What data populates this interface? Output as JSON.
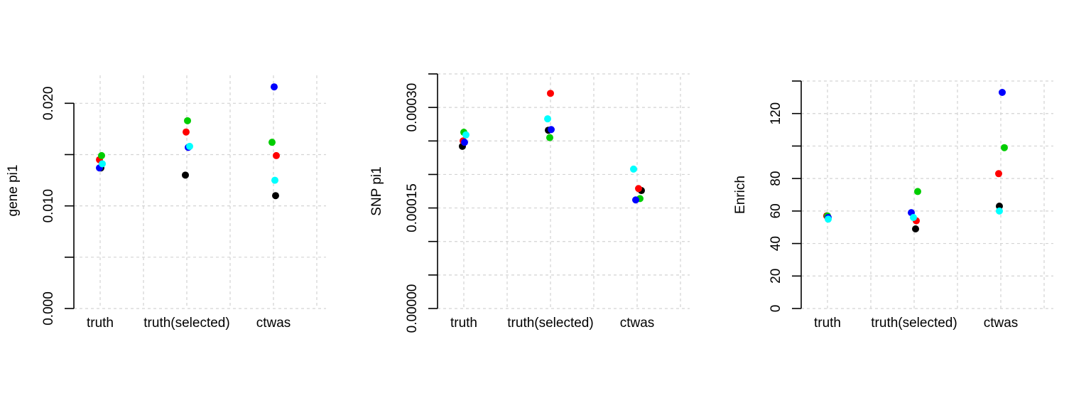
{
  "colors": {
    "black": "#000000",
    "red": "#ff0000",
    "green": "#00cd00",
    "blue": "#0000ff",
    "cyan": "#00ffff",
    "grid": "#d3d3d3"
  },
  "chart_data": [
    {
      "type": "scatter",
      "title": "",
      "xlabel": "",
      "ylabel": "gene pi1",
      "categories": [
        "truth",
        "truth(selected)",
        "ctwas"
      ],
      "ylim": [
        0,
        0.023
      ],
      "yticks": [
        0,
        0.005,
        0.01,
        0.015,
        0.02
      ],
      "ytick_labels": [
        "0.000",
        "",
        "0.010",
        "",
        "0.020"
      ],
      "grid": true,
      "series": [
        {
          "color": "#000000",
          "values": [
            0.0137,
            0.013,
            0.011
          ]
        },
        {
          "color": "#ff0000",
          "values": [
            0.0145,
            0.0172,
            0.0149
          ]
        },
        {
          "color": "#00cd00",
          "values": [
            0.0149,
            0.0183,
            0.0162
          ]
        },
        {
          "color": "#0000ff",
          "values": [
            0.0137,
            0.0157,
            0.0216
          ]
        },
        {
          "color": "#00ffff",
          "values": [
            0.0141,
            0.0158,
            0.0125
          ]
        }
      ]
    },
    {
      "type": "scatter",
      "title": "",
      "xlabel": "",
      "ylabel": "SNP pi1",
      "categories": [
        "truth",
        "truth(selected)",
        "ctwas"
      ],
      "ylim": [
        0,
        0.00035
      ],
      "yticks": [
        0,
        5e-05,
        0.0001,
        0.00015,
        0.0002,
        0.00025,
        0.0003,
        0.00035
      ],
      "ytick_labels": [
        "0.00000",
        "",
        "",
        "0.00015",
        "",
        "",
        "0.00030",
        ""
      ],
      "grid": true,
      "series": [
        {
          "color": "#000000",
          "values": [
            0.000242,
            0.000266,
            0.000176
          ]
        },
        {
          "color": "#ff0000",
          "values": [
            0.00025,
            0.000321,
            0.000179
          ]
        },
        {
          "color": "#00cd00",
          "values": [
            0.000263,
            0.000255,
            0.000164
          ]
        },
        {
          "color": "#0000ff",
          "values": [
            0.000248,
            0.000267,
            0.000162
          ]
        },
        {
          "color": "#00ffff",
          "values": [
            0.000259,
            0.000283,
            0.000208
          ]
        }
      ]
    },
    {
      "type": "scatter",
      "title": "",
      "xlabel": "",
      "ylabel": "Enrich",
      "categories": [
        "truth",
        "truth(selected)",
        "ctwas"
      ],
      "ylim": [
        0,
        140
      ],
      "yticks": [
        0,
        20,
        40,
        60,
        80,
        100,
        120,
        140
      ],
      "ytick_labels": [
        "0",
        "20",
        "40",
        "60",
        "80",
        "",
        "120",
        ""
      ],
      "grid": true,
      "series": [
        {
          "color": "#000000",
          "values": [
            57,
            49,
            63
          ]
        },
        {
          "color": "#ff0000",
          "values": [
            57,
            54,
            83
          ]
        },
        {
          "color": "#00cd00",
          "values": [
            57,
            72,
            99
          ]
        },
        {
          "color": "#0000ff",
          "values": [
            56,
            59,
            133
          ]
        },
        {
          "color": "#00ffff",
          "values": [
            55,
            56,
            60
          ]
        }
      ]
    }
  ]
}
